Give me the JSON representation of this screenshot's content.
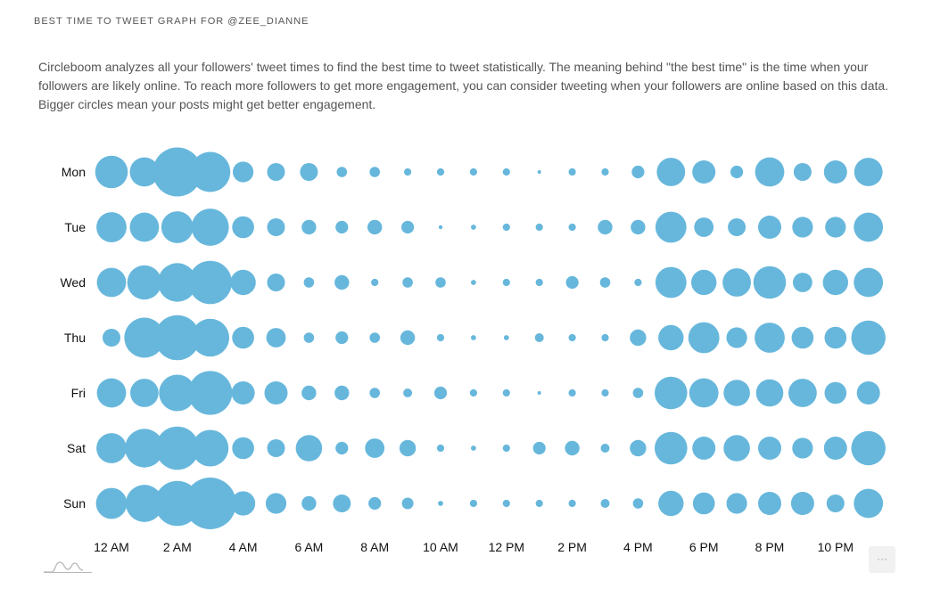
{
  "header": {
    "title": "BEST TIME TO TWEET GRAPH FOR @ZEE_DIANNE"
  },
  "description": "Circleboom analyzes all your followers' tweet times to find the best time to tweet statistically. The meaning behind \"the best time\" is the time when your followers are likely online. To reach more followers to get more engagement, you can consider tweeting when your followers are online based on this data. Bigger circles mean your posts might get better engagement.",
  "colors": {
    "bubble": "#67b7dc",
    "text": "#555555"
  },
  "icons": {
    "logo": "chart-wave-logo-icon",
    "more": "more-options-icon"
  },
  "more_label": "···",
  "chart_data": {
    "type": "scatter",
    "title": "",
    "xlabel": "",
    "ylabel": "",
    "days": [
      "Mon",
      "Tue",
      "Wed",
      "Thu",
      "Fri",
      "Sat",
      "Sun"
    ],
    "hours": [
      "12 AM",
      "1 AM",
      "2 AM",
      "3 AM",
      "4 AM",
      "5 AM",
      "6 AM",
      "7 AM",
      "8 AM",
      "9 AM",
      "10 AM",
      "11 AM",
      "12 PM",
      "1 PM",
      "2 PM",
      "3 PM",
      "4 PM",
      "5 PM",
      "6 PM",
      "7 PM",
      "8 PM",
      "9 PM",
      "10 PM",
      "11 PM"
    ],
    "xtick_labels": [
      "12 AM",
      "2 AM",
      "4 AM",
      "6 AM",
      "8 AM",
      "10 AM",
      "12 PM",
      "2 PM",
      "4 PM",
      "6 PM",
      "8 PM",
      "10 PM"
    ],
    "grid": false,
    "legend": "none",
    "size_encoding": "relative engagement (circle area)",
    "values": [
      [
        20,
        16,
        45,
        30,
        8,
        6,
        6,
        2,
        2,
        1,
        1,
        1,
        1,
        0.2,
        1,
        1,
        3,
        15,
        10,
        3,
        16,
        6,
        10,
        15
      ],
      [
        17,
        16,
        19,
        26,
        9,
        6,
        4,
        3,
        4,
        3,
        0.3,
        0.5,
        1,
        1,
        1,
        4,
        4,
        18,
        7,
        6,
        10,
        8,
        8,
        16
      ],
      [
        16,
        22,
        28,
        35,
        12,
        6,
        2,
        4,
        1,
        2,
        2,
        0.5,
        1,
        1,
        3,
        2,
        1,
        18,
        12,
        15,
        20,
        7,
        12,
        16
      ],
      [
        6,
        30,
        38,
        27,
        9,
        7,
        2,
        3,
        2,
        4,
        1,
        0.5,
        0.5,
        1.5,
        1,
        1,
        5,
        12,
        18,
        8,
        17,
        9,
        9,
        22
      ],
      [
        16,
        15,
        25,
        36,
        10,
        10,
        4,
        4,
        2,
        1.5,
        3,
        1,
        1,
        0.2,
        1,
        1,
        2,
        20,
        16,
        13,
        14,
        15,
        9,
        10
      ],
      [
        17,
        28,
        35,
        25,
        9,
        6,
        13,
        3,
        7,
        5,
        1,
        0.5,
        1,
        3,
        4,
        1.5,
        5,
        20,
        10,
        13,
        10,
        8,
        10,
        22
      ],
      [
        18,
        26,
        38,
        50,
        11,
        8,
        4,
        6,
        3,
        2.5,
        0.5,
        1,
        1,
        1,
        1,
        1.5,
        2,
        12,
        9,
        8,
        10,
        10,
        6,
        16
      ]
    ]
  }
}
